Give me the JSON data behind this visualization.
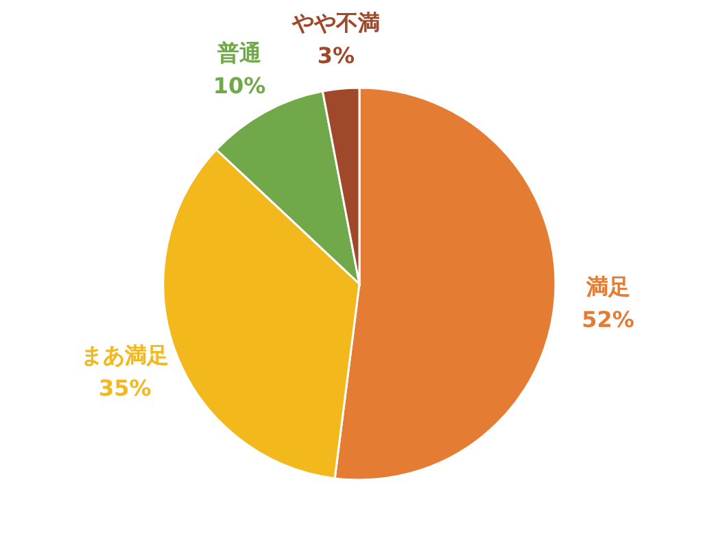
{
  "chart_data": {
    "type": "pie",
    "categories": [
      "満足",
      "まあ満足",
      "普通",
      "やや不満"
    ],
    "values": [
      52,
      35,
      10,
      3
    ],
    "colors": [
      "#e57c34",
      "#f2b81c",
      "#70a84a",
      "#a0482a"
    ],
    "value_labels": [
      "52%",
      "35%",
      "10%",
      "3%"
    ]
  }
}
